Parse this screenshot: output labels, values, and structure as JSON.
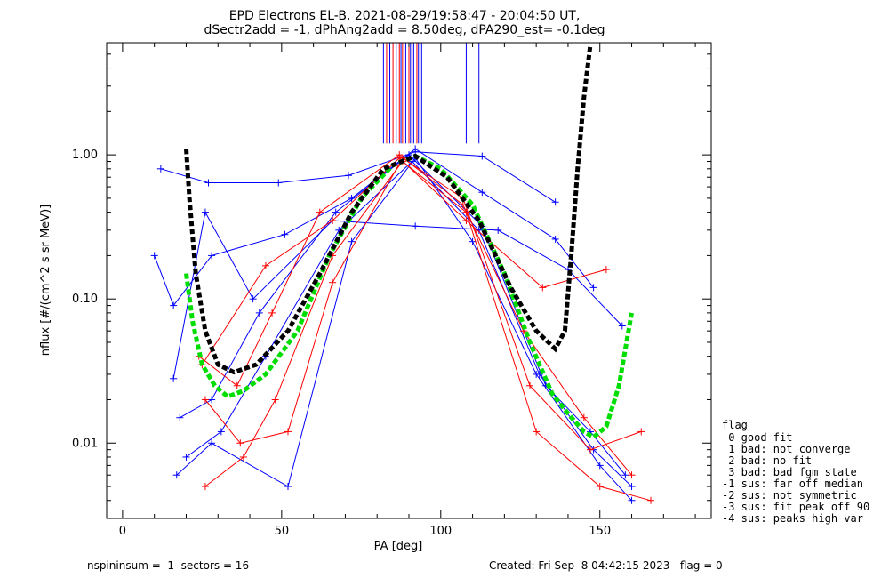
{
  "chart_data": {
    "type": "line",
    "title": "EPD Electrons EL-B, 2021-08-29/19:58:47 - 20:04:50 UT,",
    "subtitle": "dSectr2add = -1, dPhAng2add = 8.50deg, dPA290_est=  -0.1deg",
    "xlabel": "PA [deg]",
    "ylabel": "nflux [#/(cm^2 s sr MeV)]",
    "xlim": [
      -5,
      185
    ],
    "ylim": [
      0.003,
      6
    ],
    "y_scale": "log",
    "x_ticks": [
      0,
      50,
      100,
      150
    ],
    "y_ticks": [
      {
        "value": 0.01,
        "label": "0.01"
      },
      {
        "value": 0.1,
        "label": "0.10"
      },
      {
        "value": 1.0,
        "label": "1.00"
      }
    ],
    "grid": false,
    "series": [
      {
        "color": "#0000ff",
        "style": "solid-plus",
        "x": [
          10,
          16,
          28,
          51,
          72,
          92,
          113,
          136,
          148
        ],
        "y": [
          0.2,
          0.09,
          0.2,
          0.28,
          0.5,
          1.1,
          0.55,
          0.26,
          0.12
        ]
      },
      {
        "color": "#0000ff",
        "style": "solid-plus",
        "x": [
          12,
          27,
          49,
          71,
          92,
          113,
          136
        ],
        "y": [
          0.8,
          0.64,
          0.64,
          0.72,
          1.05,
          0.98,
          0.47
        ]
      },
      {
        "color": "#0000ff",
        "style": "solid-plus",
        "x": [
          16,
          26,
          41,
          66,
          92,
          118,
          140,
          157
        ],
        "y": [
          0.028,
          0.4,
          0.1,
          0.35,
          0.32,
          0.3,
          0.16,
          0.065
        ]
      },
      {
        "color": "#0000ff",
        "style": "solid-plus",
        "x": [
          17,
          28,
          52,
          72,
          92,
          110,
          130,
          150,
          160
        ],
        "y": [
          0.006,
          0.01,
          0.005,
          0.25,
          0.95,
          0.25,
          0.03,
          0.007,
          0.004
        ]
      },
      {
        "color": "#0000ff",
        "style": "solid-plus",
        "x": [
          20,
          31,
          45,
          68,
          91,
          112,
          131,
          148,
          160
        ],
        "y": [
          0.008,
          0.012,
          0.04,
          0.3,
          0.9,
          0.3,
          0.03,
          0.009,
          0.005
        ]
      },
      {
        "color": "#0000ff",
        "style": "solid-plus",
        "x": [
          18,
          28,
          43,
          67,
          90,
          113,
          133,
          147,
          158
        ],
        "y": [
          0.015,
          0.02,
          0.08,
          0.4,
          1.0,
          0.32,
          0.025,
          0.012,
          0.006
        ]
      },
      {
        "color": "#ff0000",
        "style": "solid-plus",
        "x": [
          24,
          36,
          47,
          62,
          87,
          107,
          126,
          145,
          160
        ],
        "y": [
          0.04,
          0.025,
          0.08,
          0.4,
          1.0,
          0.45,
          0.06,
          0.015,
          0.006
        ]
      },
      {
        "color": "#ff0000",
        "style": "solid-plus",
        "x": [
          26,
          37,
          52,
          66,
          88,
          107,
          128,
          147,
          163
        ],
        "y": [
          0.02,
          0.01,
          0.012,
          0.13,
          0.95,
          0.5,
          0.025,
          0.009,
          0.012
        ]
      },
      {
        "color": "#ff0000",
        "style": "solid-plus",
        "x": [
          25,
          45,
          66,
          87,
          108,
          132,
          152
        ],
        "y": [
          0.035,
          0.17,
          0.35,
          0.95,
          0.35,
          0.12,
          0.16
        ]
      },
      {
        "color": "#ff0000",
        "style": "solid-plus",
        "x": [
          26,
          38,
          48,
          66,
          88,
          108,
          130,
          150,
          166
        ],
        "y": [
          0.005,
          0.008,
          0.02,
          0.2,
          0.9,
          0.4,
          0.012,
          0.005,
          0.004
        ]
      },
      {
        "name": "fit (flag 0)",
        "color": "#00dd00",
        "style": "dashed",
        "x": [
          20,
          22,
          25,
          29,
          33,
          38,
          45,
          55,
          65,
          75,
          85,
          92,
          100,
          110,
          120,
          128,
          135,
          140,
          145,
          148,
          152,
          156,
          160
        ],
        "y": [
          0.15,
          0.07,
          0.035,
          0.025,
          0.021,
          0.023,
          0.03,
          0.06,
          0.2,
          0.5,
          0.85,
          0.98,
          0.8,
          0.45,
          0.15,
          0.05,
          0.022,
          0.016,
          0.012,
          0.011,
          0.013,
          0.025,
          0.08
        ]
      },
      {
        "name": "fit",
        "color": "#000000",
        "style": "dashed",
        "x": [
          20,
          21,
          23,
          26,
          30,
          35,
          42,
          52,
          62,
          72,
          82,
          92,
          102,
          112,
          122,
          130,
          136,
          139,
          141,
          143,
          145,
          147
        ],
        "y": [
          1.1,
          0.5,
          0.15,
          0.06,
          0.035,
          0.031,
          0.035,
          0.06,
          0.15,
          0.4,
          0.8,
          0.98,
          0.7,
          0.35,
          0.12,
          0.06,
          0.045,
          0.06,
          0.2,
          0.8,
          2.5,
          5.8
        ]
      }
    ],
    "vertical_markers": [
      {
        "color": "#0000ff",
        "x": [
          82,
          84,
          86,
          87.5,
          89,
          90.5,
          91.5,
          93,
          94,
          108,
          112
        ],
        "y_from": 1.2
      },
      {
        "color": "#ff0000",
        "x": [
          83,
          85,
          87,
          88,
          90,
          91,
          92.5
        ],
        "y_from": 1.2
      }
    ],
    "legend": {
      "placement": "right",
      "title": "flag",
      "entries": [
        " 0 good fit",
        " 1 bad: not converge",
        " 2 bad: no fit",
        " 3 bad: bad fgm state",
        "-1 sus: far off median",
        "-2 sus: not symmetric",
        "-3 sus: fit peak off 90",
        "-4 sus: peaks high var"
      ]
    },
    "footer": {
      "left": "nspininsum =  1  sectors = 16",
      "right": "Created: Fri Sep  8 04:42:15 2023   flag = 0"
    }
  }
}
